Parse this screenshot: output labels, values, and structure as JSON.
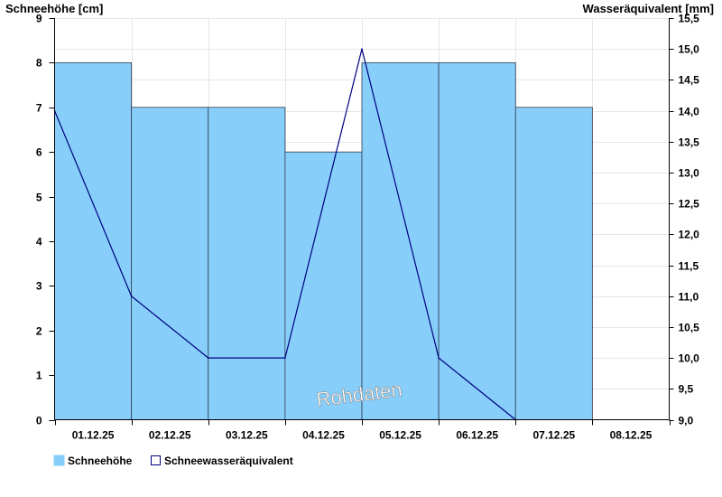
{
  "chart_data": {
    "type": "bar+line",
    "categories": [
      "01.12.25",
      "02.12.25",
      "03.12.25",
      "04.12.25",
      "05.12.25",
      "06.12.25",
      "07.12.25",
      "08.12.25"
    ],
    "left_axis": {
      "label": "Schneehöhe [cm]",
      "ylim": [
        0,
        9
      ],
      "ticks": [
        0,
        1,
        2,
        3,
        4,
        5,
        6,
        7,
        8,
        9
      ],
      "tick_labels": [
        "0",
        "1",
        "2",
        "3",
        "4",
        "5",
        "6",
        "7",
        "8",
        "9"
      ]
    },
    "right_axis": {
      "label": "Wasseräquivalent [mm]",
      "ylim": [
        9.0,
        15.5
      ],
      "ticks": [
        9.0,
        9.5,
        10.0,
        10.5,
        11.0,
        11.5,
        12.0,
        12.5,
        13.0,
        13.5,
        14.0,
        14.5,
        15.0,
        15.5
      ],
      "tick_labels": [
        "9,0",
        "9,5",
        "10,0",
        "10,5",
        "11,0",
        "11,5",
        "12,0",
        "12,5",
        "13,0",
        "13,5",
        "14,0",
        "14,5",
        "15,0",
        "15,5"
      ]
    },
    "series": [
      {
        "name": "Schneehöhe",
        "type": "bar",
        "axis": "left",
        "color": "#87cefa",
        "values": [
          8,
          7,
          7,
          6,
          8,
          8,
          7,
          null
        ]
      },
      {
        "name": "Schneewasseräquivalent",
        "type": "line",
        "axis": "right",
        "color": "#000080",
        "x": [
          "01.12.25",
          "02.12.25",
          "03.12.25",
          "04.12.25",
          "05.12.25",
          "06.12.25",
          "07.12.25"
        ],
        "values": [
          14.0,
          11.0,
          10.0,
          10.0,
          15.0,
          10.0,
          9.0
        ]
      }
    ],
    "annotation": "Rohdaten",
    "legend_position": "bottom-left",
    "grid": true
  },
  "colors": {
    "bar_fill": "#87cefa",
    "bar_edge": "#333f50",
    "line": "#000080",
    "grid": "#e6e6e6",
    "axis": "#000000"
  }
}
